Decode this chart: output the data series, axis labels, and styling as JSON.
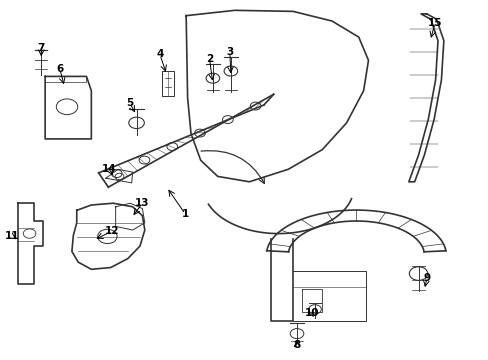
{
  "background_color": "#ffffff",
  "line_color": "#333333",
  "figsize": [
    4.89,
    3.6
  ],
  "dpi": 100
}
